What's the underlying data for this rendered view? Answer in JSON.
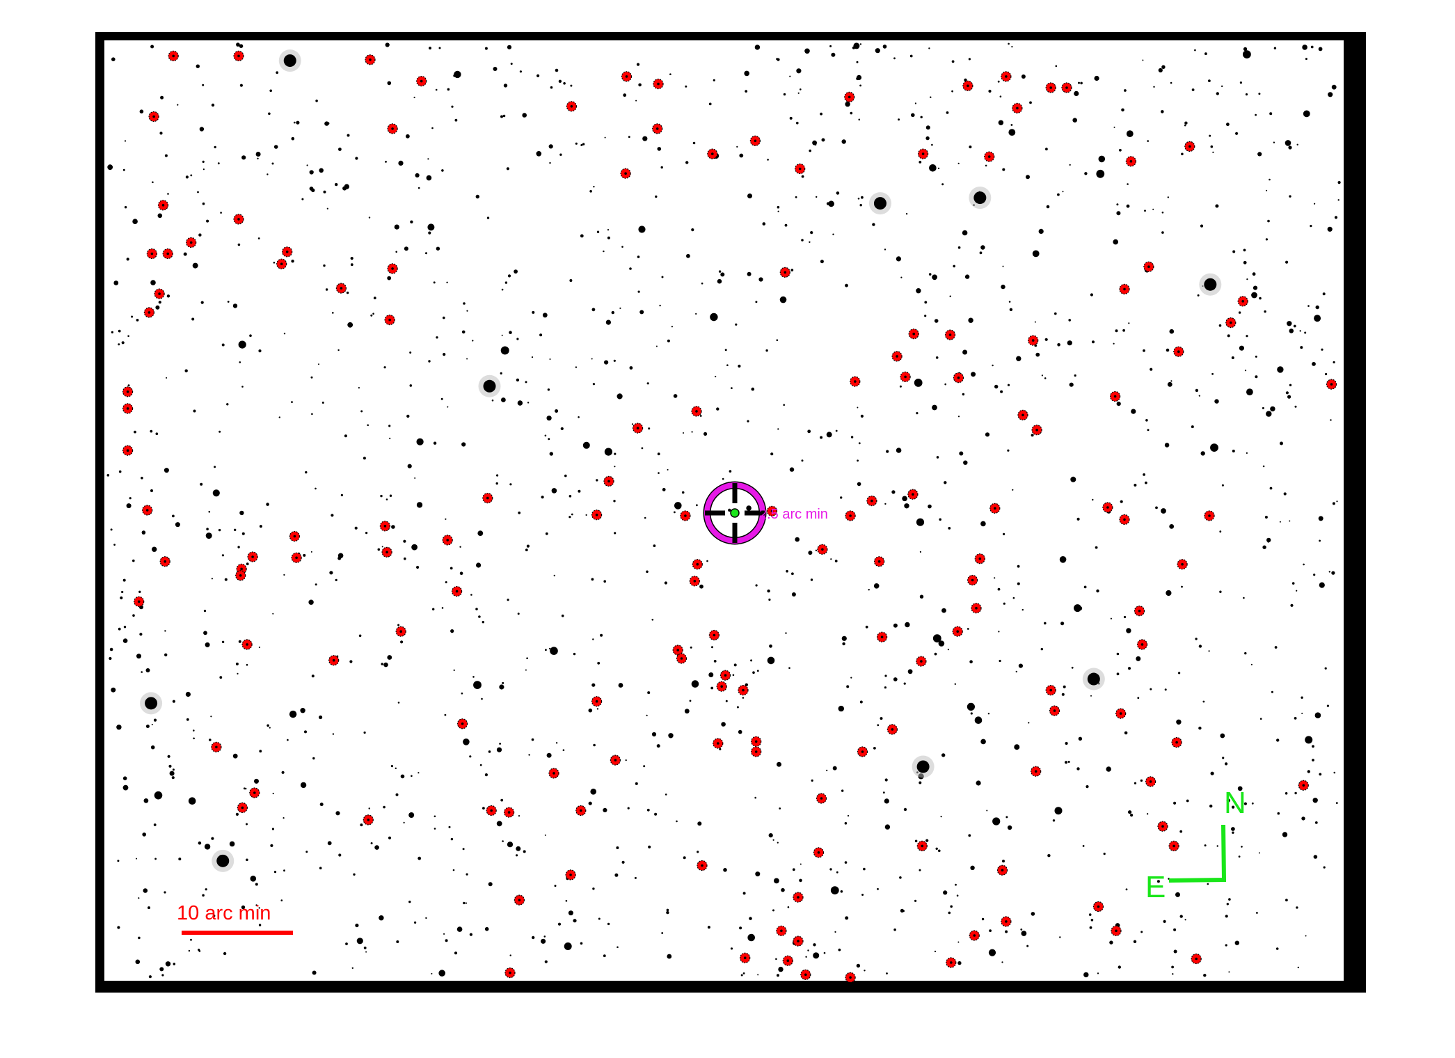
{
  "finder_chart": {
    "target_circle_label": "2.5 arc min",
    "scale_bar_label": "10 arc min",
    "compass": {
      "north": "N",
      "east": "E"
    },
    "colors": {
      "frame": "#000000",
      "field_background": "#ffffff",
      "stars": "#000000",
      "comparison_markers": "#ff0000",
      "target_circle": "#e619e6",
      "target_center": "#19e619",
      "scale_bar": "#ff0000",
      "compass": "#19e619"
    },
    "icons": {
      "target": "crosshair-icon",
      "comparison_star": "red-dot-marker"
    }
  }
}
